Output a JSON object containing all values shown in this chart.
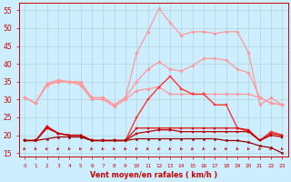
{
  "title": "",
  "xlabel": "Vent moyen/en rafales ( km/h )",
  "ylabel": "",
  "background_color": "#cceeff",
  "grid_color": "#aacccc",
  "x_values": [
    0,
    1,
    2,
    3,
    4,
    5,
    6,
    7,
    8,
    9,
    10,
    11,
    12,
    13,
    14,
    15,
    16,
    17,
    18,
    19,
    20,
    21,
    22,
    23
  ],
  "series": [
    {
      "name": "rafales_max",
      "color": "#ff9999",
      "linewidth": 0.9,
      "marker": "D",
      "markersize": 1.8,
      "y": [
        30.5,
        29.0,
        34.5,
        35.5,
        35.0,
        35.0,
        30.5,
        30.5,
        28.5,
        30.5,
        43.0,
        49.0,
        55.5,
        51.5,
        48.0,
        49.0,
        49.0,
        48.5,
        49.0,
        49.0,
        43.0,
        28.5,
        30.5,
        28.5
      ]
    },
    {
      "name": "rafales_mid",
      "color": "#ff9999",
      "linewidth": 0.9,
      "marker": "D",
      "markersize": 1.8,
      "y": [
        30.5,
        29.0,
        34.5,
        35.0,
        35.0,
        34.5,
        30.5,
        30.5,
        28.5,
        30.5,
        35.0,
        38.5,
        40.5,
        38.5,
        38.0,
        39.5,
        41.5,
        41.5,
        41.0,
        38.5,
        37.5,
        30.5,
        29.0,
        28.5
      ]
    },
    {
      "name": "vent_moy_upper",
      "color": "#ff9999",
      "linewidth": 0.9,
      "marker": "D",
      "markersize": 1.8,
      "y": [
        30.5,
        29.0,
        34.0,
        35.0,
        35.0,
        34.0,
        30.0,
        30.0,
        28.0,
        30.0,
        32.5,
        33.0,
        33.5,
        31.5,
        31.5,
        31.5,
        31.5,
        31.5,
        31.5,
        31.5,
        31.5,
        30.5,
        29.0,
        28.5
      ]
    },
    {
      "name": "red_upper",
      "color": "#ff3333",
      "linewidth": 1.0,
      "marker": "s",
      "markersize": 1.8,
      "y": [
        18.5,
        18.5,
        22.5,
        20.5,
        20.0,
        20.0,
        18.5,
        18.5,
        18.5,
        18.5,
        25.0,
        30.0,
        33.5,
        36.5,
        33.0,
        31.5,
        31.5,
        28.5,
        28.5,
        22.0,
        21.0,
        18.5,
        21.0,
        20.0
      ]
    },
    {
      "name": "red_mid2",
      "color": "#dd1111",
      "linewidth": 0.9,
      "marker": "s",
      "markersize": 1.6,
      "y": [
        18.5,
        18.5,
        22.5,
        20.5,
        20.0,
        20.0,
        18.5,
        18.5,
        18.5,
        18.5,
        22.0,
        22.0,
        22.0,
        22.0,
        22.0,
        22.0,
        22.0,
        22.0,
        22.0,
        22.0,
        21.5,
        18.5,
        20.5,
        20.0
      ]
    },
    {
      "name": "red_mid3",
      "color": "#bb0000",
      "linewidth": 0.9,
      "marker": "s",
      "markersize": 1.6,
      "y": [
        18.5,
        18.5,
        22.0,
        20.5,
        20.0,
        20.0,
        18.5,
        18.5,
        18.5,
        18.5,
        20.5,
        21.0,
        21.5,
        21.5,
        21.0,
        21.0,
        21.0,
        21.0,
        21.0,
        21.0,
        21.0,
        18.5,
        20.0,
        19.5
      ]
    },
    {
      "name": "dark_low",
      "color": "#990000",
      "linewidth": 0.9,
      "marker": "s",
      "markersize": 1.4,
      "y": [
        18.5,
        18.5,
        19.0,
        19.5,
        19.5,
        19.5,
        18.5,
        18.5,
        18.5,
        18.5,
        19.0,
        19.0,
        19.0,
        19.0,
        19.0,
        19.0,
        19.0,
        19.0,
        18.5,
        18.5,
        18.0,
        17.0,
        16.5,
        15.0
      ]
    }
  ],
  "ylim": [
    14,
    57
  ],
  "yticks": [
    15,
    20,
    25,
    30,
    35,
    40,
    45,
    50,
    55
  ],
  "xlim": [
    -0.5,
    23.5
  ],
  "arrow_color": "#cc0000",
  "spine_color": "#cc0000"
}
